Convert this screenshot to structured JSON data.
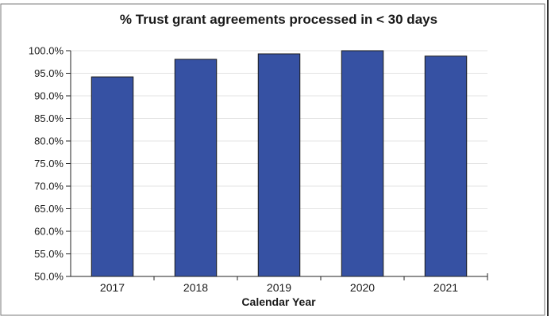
{
  "chart_data": {
    "type": "bar",
    "title": "% Trust grant agreements processed in < 30 days",
    "xlabel": "Calendar Year",
    "ylabel": "",
    "categories": [
      "2017",
      "2018",
      "2019",
      "2020",
      "2021"
    ],
    "values": [
      94.2,
      98.1,
      99.3,
      100.0,
      98.8
    ],
    "ylim": [
      50,
      100
    ],
    "yticks": [
      "50.0%",
      "55.0%",
      "60.0%",
      "65.0%",
      "70.0%",
      "75.0%",
      "80.0%",
      "85.0%",
      "90.0%",
      "95.0%",
      "100.0%"
    ],
    "grid": true,
    "legend": "none",
    "colors": {
      "bar": "#3651a3",
      "bar_stroke": "#1a1a1a",
      "grid": "#e3e3e3",
      "axis": "#222222",
      "frame": "#7a7a7a",
      "edge": "#333333"
    }
  }
}
